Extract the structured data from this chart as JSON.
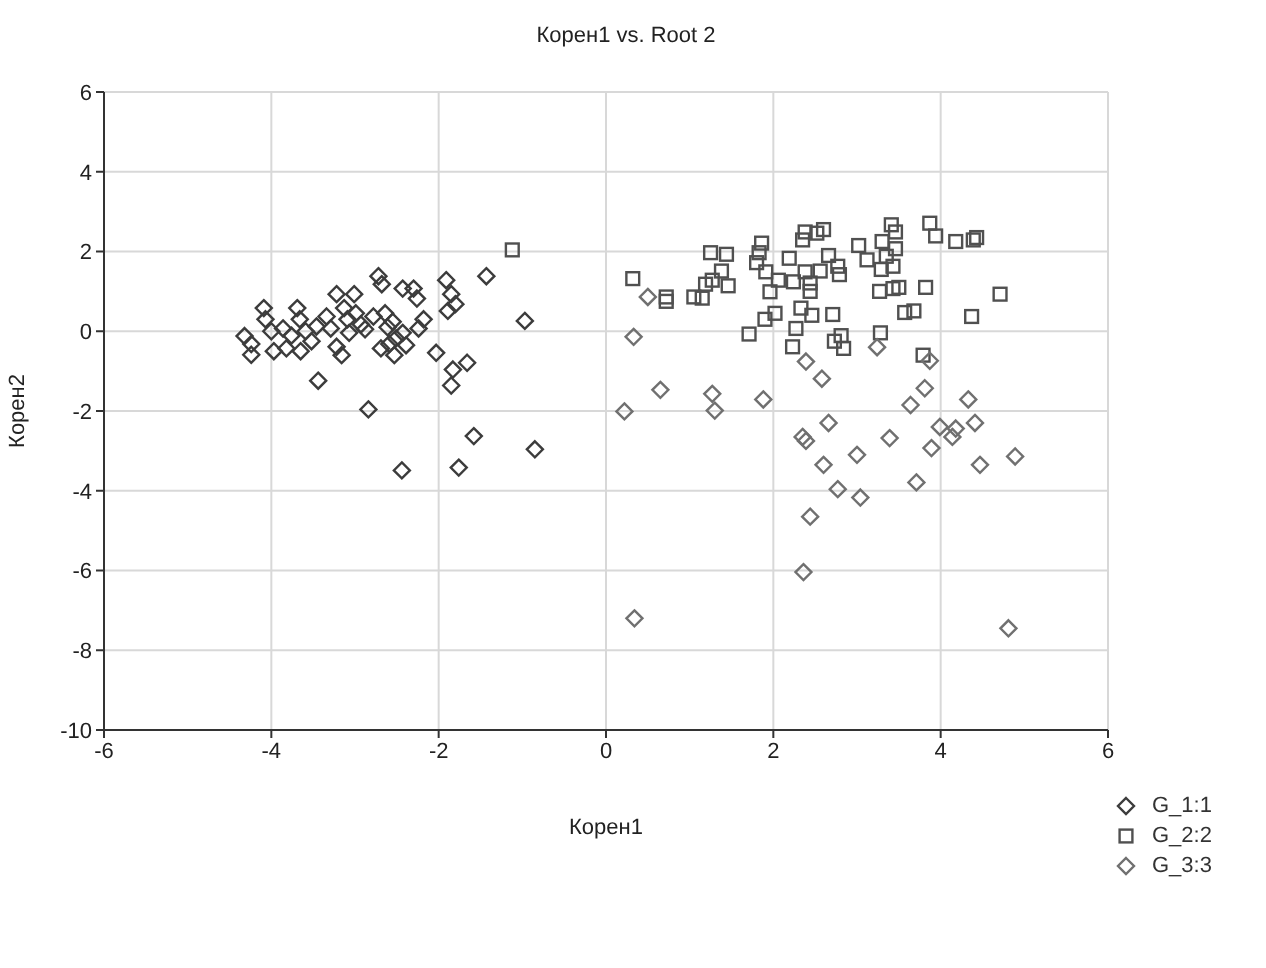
{
  "chart_data": {
    "type": "scatter",
    "title": "Корен1 vs. Root 2",
    "xlabel": "Корен1",
    "ylabel": "Корен2",
    "xlim": [
      -6,
      6
    ],
    "xticks": [
      -6,
      -4,
      -2,
      0,
      2,
      4,
      6
    ],
    "ylim": [
      -10,
      6
    ],
    "yticks": [
      -10,
      -8,
      -6,
      -4,
      -2,
      0,
      2,
      4,
      6
    ],
    "grid": true,
    "legend": "bottom right",
    "series": [
      {
        "name": "G_1:1",
        "color": "#3c3c3c",
        "marker": "diamond",
        "x": [
          -4.32,
          -4.24,
          -4.24,
          -4.09,
          -4.07,
          -4.0,
          -3.97,
          -3.86,
          -3.82,
          -3.76,
          -3.69,
          -3.66,
          -3.65,
          -3.59,
          -3.52,
          -3.46,
          -3.44,
          -3.34,
          -3.29,
          -3.22,
          -3.22,
          -3.16,
          -3.13,
          -3.09,
          -3.07,
          -3.01,
          -2.99,
          -2.93,
          -2.88,
          -2.84,
          -2.78,
          -2.72,
          -2.69,
          -2.68,
          -2.64,
          -2.61,
          -2.59,
          -2.55,
          -2.53,
          -2.51,
          -2.44,
          -2.43,
          -2.43,
          -2.39,
          -2.3,
          -2.26,
          -2.24,
          -2.18,
          -2.03,
          -1.91,
          -1.89,
          -1.85,
          -1.83,
          -1.8,
          -1.85,
          -1.76,
          -1.66,
          -1.58,
          -1.43,
          -0.97,
          -0.85
        ],
        "values": [
          -0.12,
          -0.32,
          -0.59,
          0.58,
          0.3,
          0,
          -0.5,
          0.07,
          -0.43,
          -0.11,
          0.58,
          0.3,
          -0.5,
          0,
          -0.25,
          0.12,
          -1.24,
          0.37,
          0.07,
          0.93,
          -0.39,
          -0.6,
          0.58,
          0.3,
          -0.04,
          0.93,
          0.45,
          0.17,
          0.05,
          -1.96,
          0.37,
          1.38,
          -0.43,
          1.18,
          0.45,
          0.1,
          -0.32,
          0.24,
          -0.6,
          -0.18,
          -3.49,
          1.07,
          -0.04,
          -0.35,
          1.07,
          0.82,
          0.07,
          0.3,
          -0.54,
          1.28,
          0.51,
          0.93,
          -0.96,
          0.68,
          -1.36,
          -3.42,
          -0.79,
          -2.63,
          1.38,
          0.26,
          -2.96
        ]
      },
      {
        "name": "G_2:2",
        "color": "#505050",
        "marker": "square",
        "x": [
          -1.12,
          0.32,
          0.72,
          0.72,
          1.05,
          1.15,
          1.19,
          1.25,
          1.27,
          1.38,
          1.44,
          1.46,
          1.71,
          1.8,
          1.83,
          1.86,
          1.9,
          1.91,
          1.96,
          2.02,
          2.06,
          2.19,
          2.23,
          2.24,
          2.27,
          2.33,
          2.35,
          2.38,
          2.38,
          2.44,
          2.44,
          2.46,
          2.52,
          2.56,
          2.6,
          2.66,
          2.71,
          2.73,
          2.77,
          2.79,
          2.81,
          2.84,
          3.02,
          3.12,
          3.27,
          3.28,
          3.29,
          3.3,
          3.35,
          3.41,
          3.43,
          3.43,
          3.46,
          3.46,
          3.5,
          3.57,
          3.68,
          3.79,
          3.82,
          3.87,
          3.94,
          4.18,
          4.39,
          4.43,
          4.37,
          4.71
        ],
        "values": [
          2.04,
          1.32,
          0.86,
          0.75,
          0.86,
          0.83,
          1.18,
          1.97,
          1.28,
          1.51,
          1.93,
          1.14,
          -0.07,
          1.72,
          1.97,
          2.21,
          0.3,
          1.49,
          0.99,
          0.45,
          1.28,
          1.83,
          -0.39,
          1.24,
          0.07,
          0.58,
          2.29,
          1.49,
          2.49,
          1.21,
          1.0,
          0.4,
          2.46,
          1.51,
          2.55,
          1.9,
          0.42,
          -0.25,
          1.63,
          1.42,
          -0.11,
          -0.43,
          2.15,
          1.79,
          1.0,
          -0.04,
          1.55,
          2.25,
          1.88,
          2.67,
          1.63,
          1.07,
          2.49,
          2.07,
          1.1,
          0.47,
          0.51,
          -0.6,
          1.1,
          2.71,
          2.39,
          2.25,
          2.29,
          2.35,
          0.37,
          0.93
        ]
      },
      {
        "name": "G_3:3",
        "color": "#707070",
        "marker": "diamond",
        "x": [
          0.5,
          0.33,
          0.65,
          0.22,
          1.27,
          1.3,
          1.88,
          2.39,
          2.58,
          3.24,
          3.87,
          3.81,
          3.64,
          4.33,
          2.66,
          3.99,
          4.18,
          4.41,
          2.35,
          2.39,
          3.39,
          3.89,
          4.14,
          4.89,
          2.6,
          3.0,
          4.47,
          2.77,
          3.04,
          3.71,
          2.44,
          2.36,
          0.34,
          4.81
        ],
        "values": [
          0.86,
          -0.14,
          -1.47,
          -2.01,
          -1.57,
          -1.99,
          -1.71,
          -0.76,
          -1.19,
          -0.4,
          -0.74,
          -1.43,
          -1.85,
          -1.71,
          -2.3,
          -2.4,
          -2.44,
          -2.3,
          -2.65,
          -2.75,
          -2.68,
          -2.93,
          -2.65,
          -3.14,
          -3.35,
          -3.1,
          -3.35,
          -3.96,
          -4.17,
          -3.79,
          -4.65,
          -6.04,
          -7.2,
          -7.45
        ]
      }
    ]
  }
}
